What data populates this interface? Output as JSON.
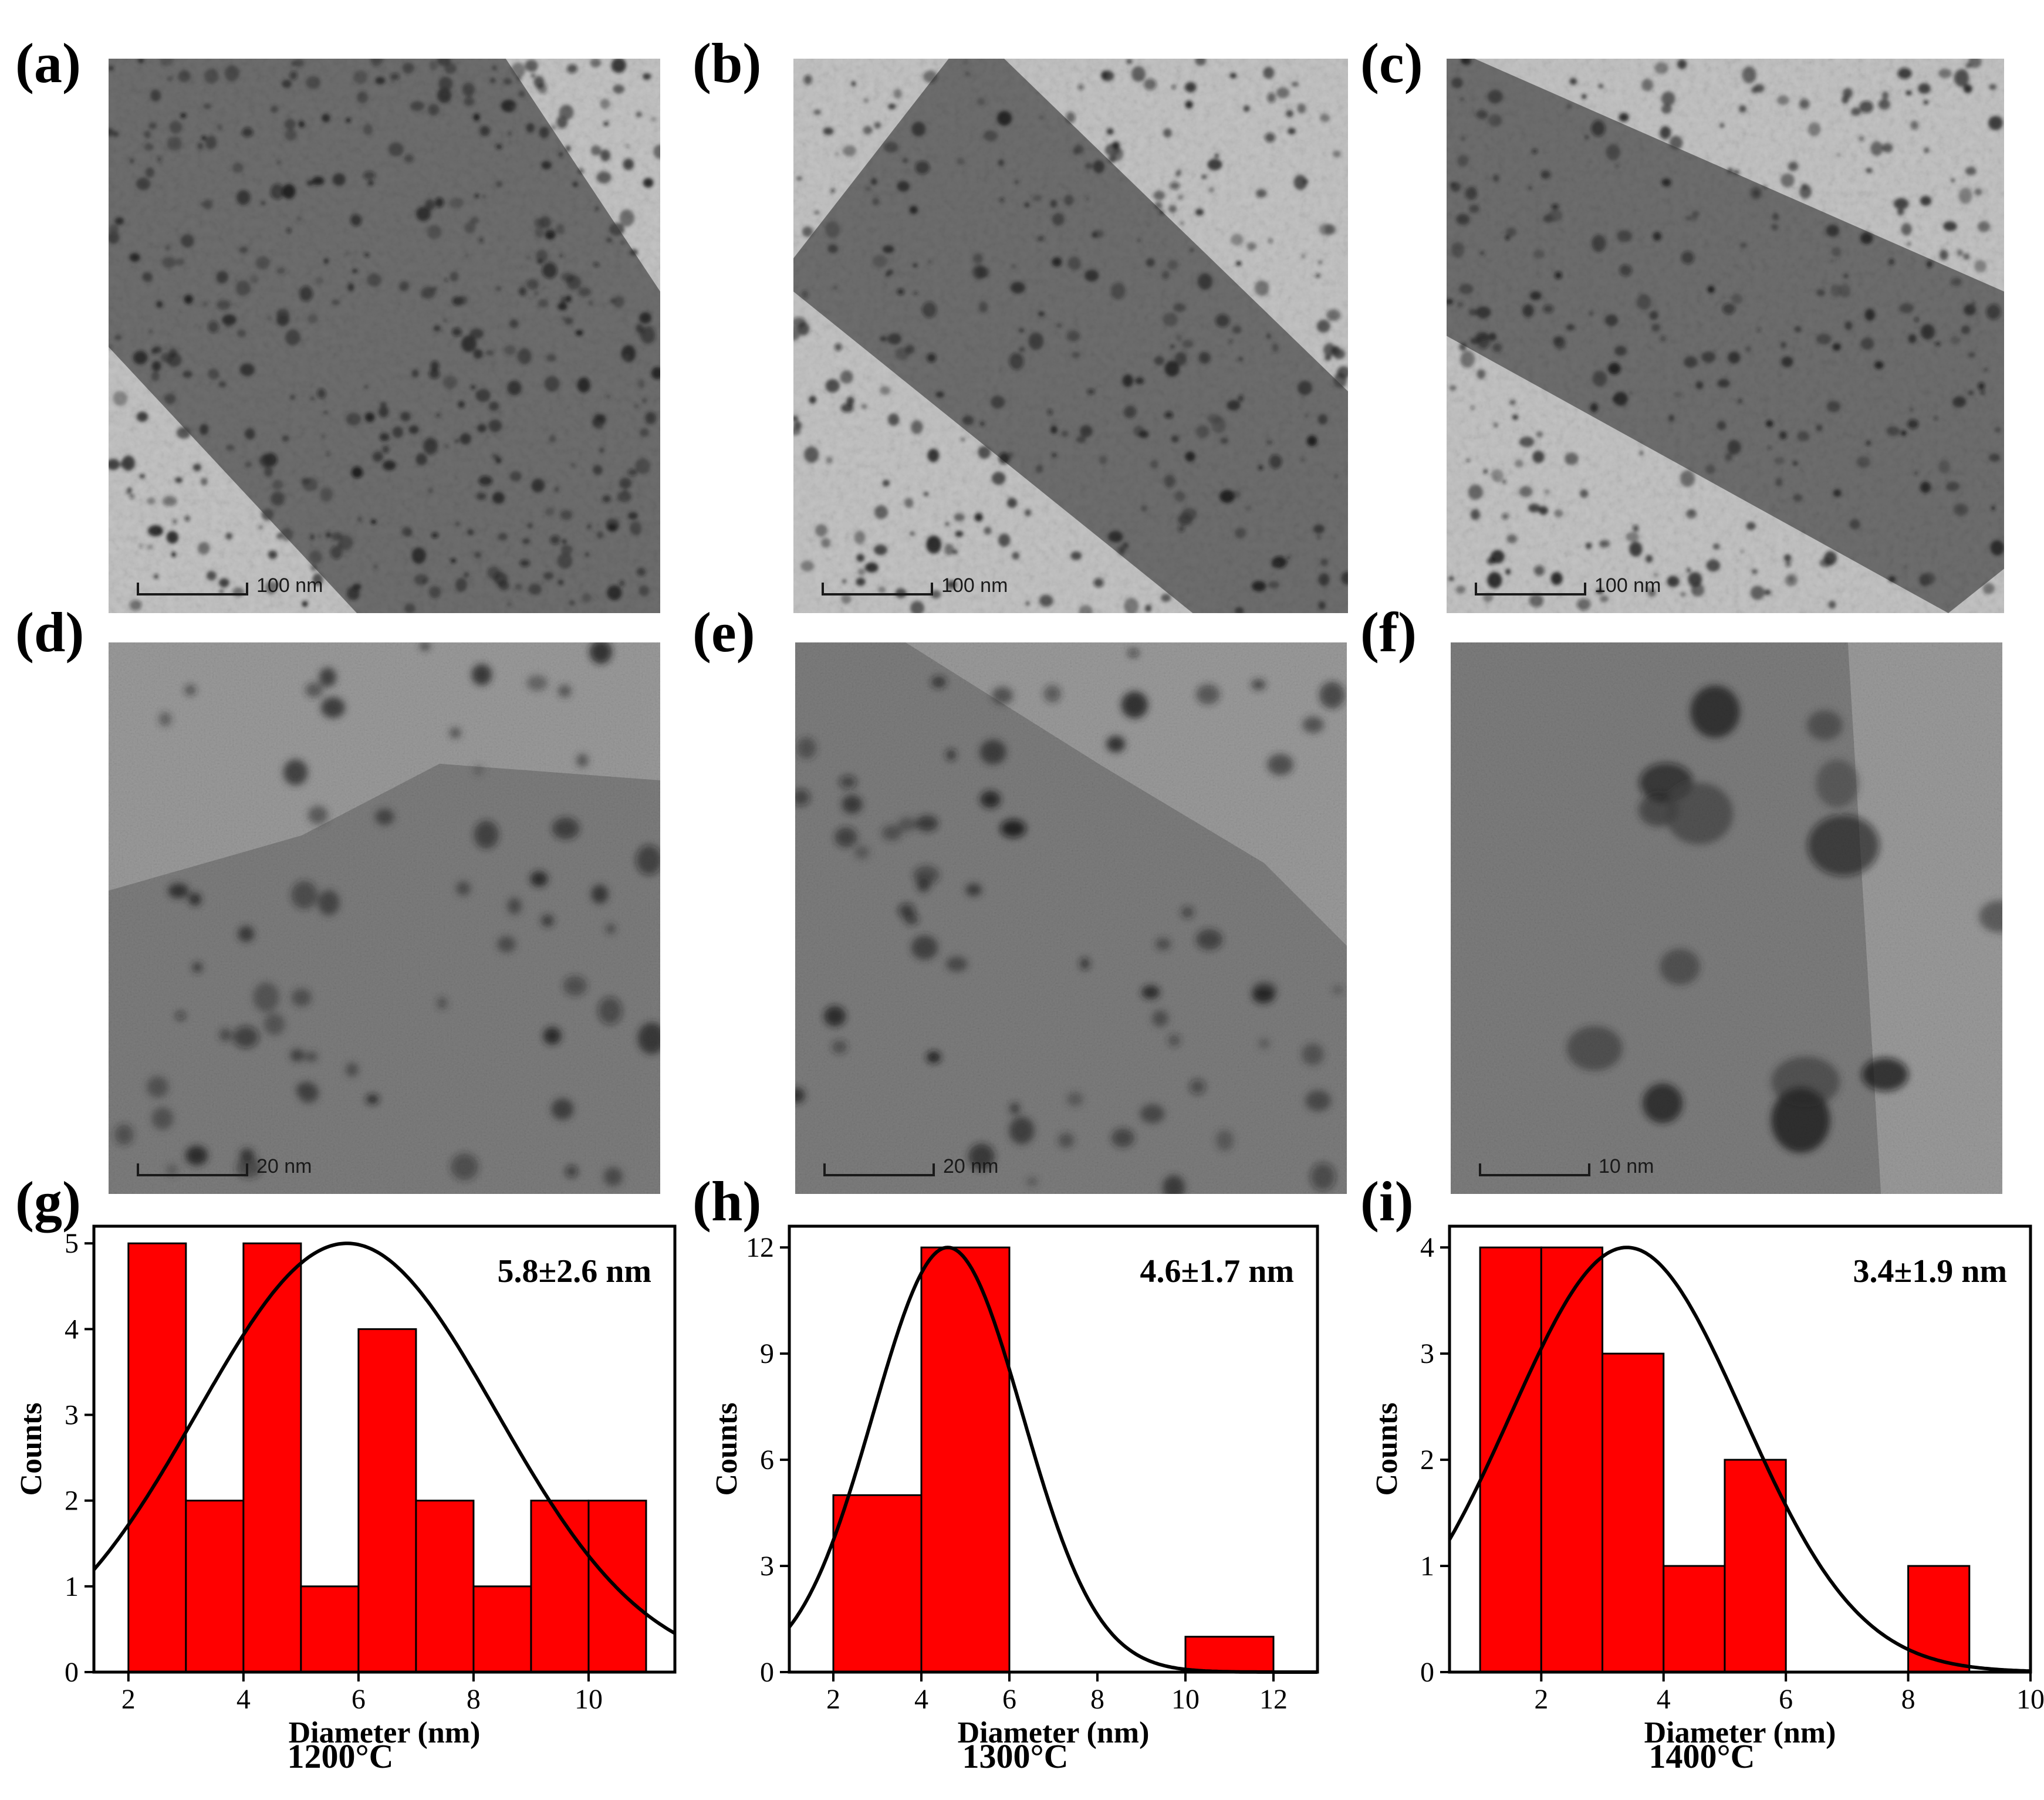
{
  "panel_labels": [
    "(a)",
    "(b)",
    "(c)",
    "(d)",
    "(e)",
    "(f)",
    "(g)",
    "(h)",
    "(i)"
  ],
  "tem_images": [
    {
      "scale_label": "100 nm",
      "style": "dense-fiber"
    },
    {
      "scale_label": "100 nm",
      "style": "fiber-diag"
    },
    {
      "scale_label": "100 nm",
      "style": "fiber-diag2"
    },
    {
      "scale_label": "20 nm",
      "style": "hr-edge"
    },
    {
      "scale_label": "20 nm",
      "style": "hr-edge2"
    },
    {
      "scale_label": "10 nm",
      "style": "hr-particles"
    }
  ],
  "colors": {
    "bar_fill": "#ff0000",
    "bar_stroke": "#000000",
    "curve": "#000000"
  },
  "chart_data": [
    {
      "type": "bar",
      "annotation": "5.8±2.6 nm",
      "xlabel": "Diameter (nm)",
      "ylabel": "Counts",
      "condition": "1200°C",
      "xlim": [
        1.4,
        11.5
      ],
      "ylim": [
        0,
        5.2
      ],
      "xticks": [
        2,
        4,
        6,
        8,
        10
      ],
      "yticks": [
        0,
        1,
        2,
        3,
        4,
        5
      ],
      "bins": [
        {
          "x0": 2,
          "x1": 3,
          "count": 5
        },
        {
          "x0": 3,
          "x1": 4,
          "count": 2
        },
        {
          "x0": 4,
          "x1": 5,
          "count": 5
        },
        {
          "x0": 5,
          "x1": 6,
          "count": 1
        },
        {
          "x0": 6,
          "x1": 7,
          "count": 4
        },
        {
          "x0": 7,
          "x1": 8,
          "count": 2
        },
        {
          "x0": 8,
          "x1": 9,
          "count": 1
        },
        {
          "x0": 9,
          "x1": 10,
          "count": 2
        },
        {
          "x0": 10,
          "x1": 11,
          "count": 2
        }
      ],
      "fit": {
        "type": "gaussian",
        "mean": 5.8,
        "sigma": 2.6,
        "peak": 5
      }
    },
    {
      "type": "bar",
      "annotation": "4.6±1.7 nm",
      "xlabel": "Diameter (nm)",
      "ylabel": "Counts",
      "condition": "1300°C",
      "xlim": [
        1,
        13
      ],
      "ylim": [
        0,
        12.6
      ],
      "xticks": [
        2,
        4,
        6,
        8,
        10,
        12
      ],
      "yticks": [
        0,
        3,
        6,
        9,
        12
      ],
      "bins": [
        {
          "x0": 2,
          "x1": 4,
          "count": 5
        },
        {
          "x0": 4,
          "x1": 6,
          "count": 12
        },
        {
          "x0": 10,
          "x1": 12,
          "count": 1
        }
      ],
      "fit": {
        "type": "gaussian",
        "mean": 4.6,
        "sigma": 1.7,
        "peak": 12
      }
    },
    {
      "type": "bar",
      "annotation": "3.4±1.9 nm",
      "xlabel": "Diameter (nm)",
      "ylabel": "Counts",
      "condition": "1400°C",
      "xlim": [
        0.5,
        10
      ],
      "ylim": [
        0,
        4.2
      ],
      "xticks": [
        2,
        4,
        6,
        8,
        10
      ],
      "yticks": [
        0,
        1,
        2,
        3,
        4
      ],
      "bins": [
        {
          "x0": 1,
          "x1": 2,
          "count": 4
        },
        {
          "x0": 2,
          "x1": 3,
          "count": 4
        },
        {
          "x0": 3,
          "x1": 4,
          "count": 3
        },
        {
          "x0": 4,
          "x1": 5,
          "count": 1
        },
        {
          "x0": 5,
          "x1": 6,
          "count": 2
        },
        {
          "x0": 8,
          "x1": 9,
          "count": 1
        }
      ],
      "fit": {
        "type": "gaussian",
        "mean": 3.4,
        "sigma": 1.9,
        "peak": 4
      }
    }
  ]
}
